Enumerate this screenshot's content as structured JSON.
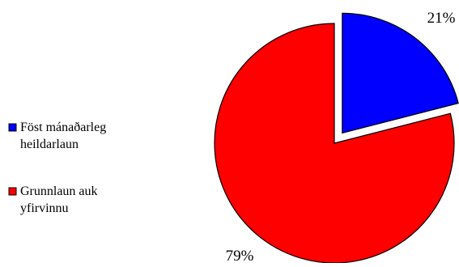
{
  "chart_data": {
    "type": "pie",
    "categories": [
      "Föst mánaðarleg heildarlaun",
      "Grunnlaun auk yfirvinnu"
    ],
    "values": [
      21,
      79
    ],
    "value_labels": [
      "21%",
      "79%"
    ],
    "legend": [
      {
        "lines": [
          "Föst mánaðarleg",
          "heildarlaun"
        ]
      },
      {
        "lines": [
          "Grunnlaun auk",
          "yfirvinnu"
        ]
      }
    ],
    "colors": [
      "#0000ff",
      "#ff0000"
    ],
    "exploded": [
      true,
      false
    ],
    "legend_position": "left",
    "title": ""
  }
}
